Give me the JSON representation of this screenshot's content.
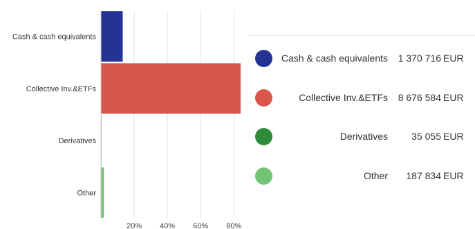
{
  "chart_data": {
    "type": "bar",
    "orientation": "horizontal",
    "categories": [
      "Cash & cash equivalents",
      "Collective Inv.&ETFs",
      "Derivatives",
      "Other"
    ],
    "values": [
      13.1,
      84.0,
      0.3,
      1.8
    ],
    "x_tick_labels": [
      "20%",
      "40%",
      "60%",
      "80%"
    ],
    "x_ticks": [
      20,
      40,
      60,
      80
    ],
    "xlim": [
      0,
      84
    ],
    "grid": true,
    "colors": [
      "#253494",
      "#d9574a",
      "#2e8b3a",
      "#74c476"
    ]
  },
  "legend": {
    "placement": "right",
    "items": [
      {
        "name": "Cash & cash equivalents",
        "value": "1 370 716",
        "unit": "EUR",
        "color": "#253494"
      },
      {
        "name": "Collective Inv.&ETFs",
        "value": "8 676 584",
        "unit": "EUR",
        "color": "#d9574a"
      },
      {
        "name": "Derivatives",
        "value": "35 055",
        "unit": "EUR",
        "color": "#2e8b3a"
      },
      {
        "name": "Other",
        "value": "187 834",
        "unit": "EUR",
        "color": "#74c476"
      }
    ]
  }
}
